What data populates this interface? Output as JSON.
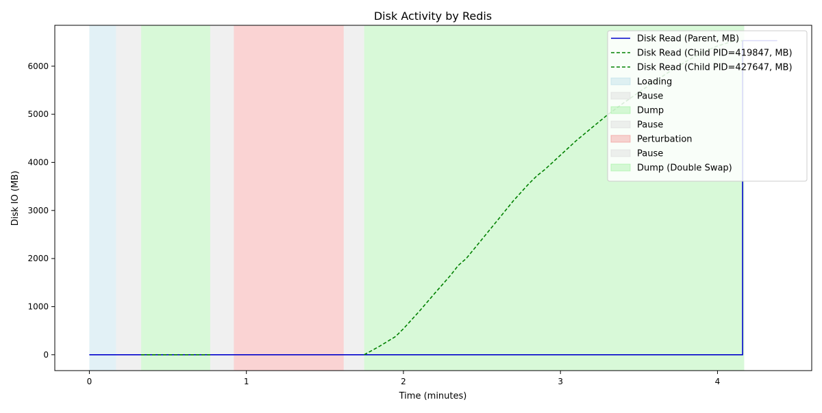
{
  "chart_data": {
    "type": "line",
    "title": "Disk Activity by Redis",
    "xlabel": "Time (minutes)",
    "ylabel": "Disk IO (MB)",
    "xlim": [
      -0.22,
      4.6
    ],
    "ylim": [
      -330,
      6850
    ],
    "xticks": [
      0,
      1,
      2,
      3,
      4
    ],
    "yticks": [
      0,
      1000,
      2000,
      3000,
      4000,
      5000,
      6000
    ],
    "grid": false,
    "legend_position": "top-right",
    "colors": {
      "parent_line": "#0000cc",
      "child_line": "#008000",
      "loading": "#add8e6",
      "pause": "#d3d3d3",
      "dump": "#90ee90",
      "perturbation": "#f08080"
    },
    "phases": [
      {
        "label": "Loading",
        "start": 0.0,
        "end": 0.17,
        "kind": "loading"
      },
      {
        "label": "Pause",
        "start": 0.17,
        "end": 0.33,
        "kind": "pause"
      },
      {
        "label": "Dump",
        "start": 0.33,
        "end": 0.77,
        "kind": "dump"
      },
      {
        "label": "Pause",
        "start": 0.77,
        "end": 0.92,
        "kind": "pause"
      },
      {
        "label": "Perturbation",
        "start": 0.92,
        "end": 1.62,
        "kind": "perturbation"
      },
      {
        "label": "Pause",
        "start": 1.62,
        "end": 1.75,
        "kind": "pause"
      },
      {
        "label": "Dump (Double Swap)",
        "start": 1.75,
        "end": 4.17,
        "kind": "dump"
      }
    ],
    "series": [
      {
        "name": "Disk Read (Parent, MB)",
        "style": "solid",
        "color_key": "parent_line",
        "x": [
          0,
          4.16,
          4.16,
          4.38
        ],
        "y": [
          0,
          0,
          6530,
          6530
        ]
      },
      {
        "name": "Disk Read (Child PID=419847, MB)",
        "style": "dashed",
        "color_key": "child_line",
        "x": [
          0.33,
          0.77
        ],
        "y": [
          0,
          0
        ]
      },
      {
        "name": "Disk Read (Child PID=427647, MB)",
        "style": "dashed",
        "color_key": "child_line",
        "x": [
          1.75,
          1.85,
          1.95,
          2.0,
          2.1,
          2.2,
          2.3,
          2.35,
          2.4,
          2.5,
          2.6,
          2.7,
          2.8,
          2.85,
          2.9,
          3.0,
          3.1,
          3.2,
          3.3,
          3.4,
          3.5,
          3.6,
          3.7,
          3.8,
          3.9,
          4.0,
          4.1,
          4.16
        ],
        "y": [
          0,
          180,
          380,
          540,
          900,
          1280,
          1650,
          1860,
          2000,
          2400,
          2800,
          3200,
          3560,
          3720,
          3850,
          4150,
          4450,
          4720,
          4990,
          5230,
          5460,
          5680,
          5900,
          6100,
          6280,
          6420,
          6520,
          6530
        ]
      }
    ]
  }
}
